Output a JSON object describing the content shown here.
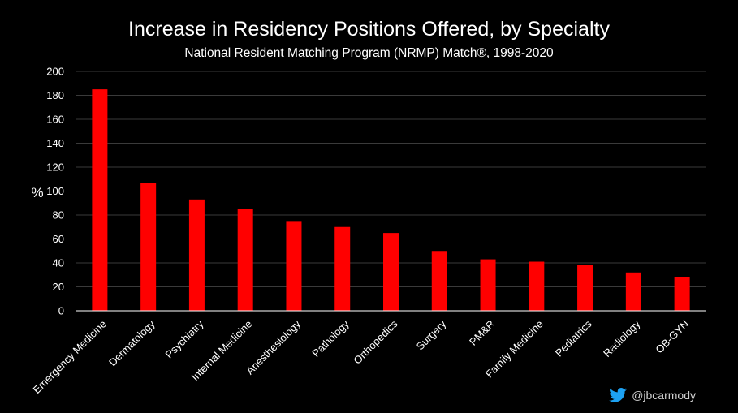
{
  "chart_data": {
    "type": "bar",
    "title": "Increase in Residency Positions Offered, by Specialty",
    "subtitle": "National Resident Matching Program (NRMP) Match®, 1998-2020",
    "xlabel": "",
    "ylabel": "%",
    "ylim": [
      0,
      200
    ],
    "yticks": [
      0,
      20,
      40,
      60,
      80,
      100,
      120,
      140,
      160,
      180,
      200
    ],
    "grid": true,
    "categories": [
      "Emergency Medicine",
      "Dermatology",
      "Psychiatry",
      "Internal Medicine",
      "Anesthesiology",
      "Pathology",
      "Orthopedics",
      "Surgery",
      "PM&R",
      "Family Medicine",
      "Pediatrics",
      "Radiology",
      "OB-GYN"
    ],
    "values": [
      185,
      107,
      93,
      85,
      75,
      70,
      65,
      50,
      43,
      41,
      38,
      32,
      28
    ],
    "bar_color": "#ff0000"
  },
  "credit": {
    "handle": "@jbcarmody",
    "icon": "twitter-bird-icon",
    "icon_color": "#1da1f2"
  }
}
